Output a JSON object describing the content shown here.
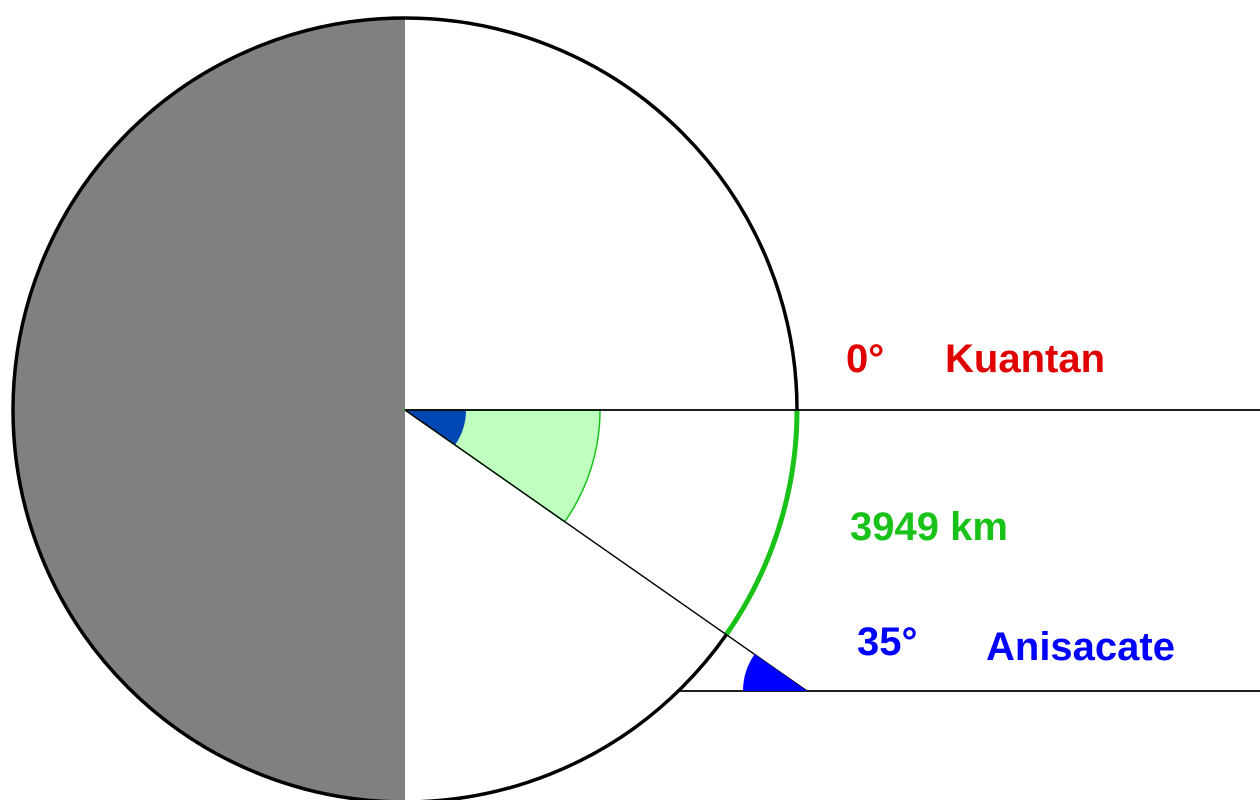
{
  "colors": {
    "dark_half": "#808080",
    "outline": "#000000",
    "reference": "#e00000",
    "distance": "#19c219",
    "distance_fill": "#bfffbf",
    "latitude": "#0000ff",
    "latitude_dark": "#0047b3"
  },
  "reference_place": {
    "latitude_label": "0°",
    "name": "Kuantan"
  },
  "distance": {
    "label": "3949 km"
  },
  "target_place": {
    "latitude_label": "35°",
    "name": "Anisacate",
    "latitude_deg": 35
  }
}
